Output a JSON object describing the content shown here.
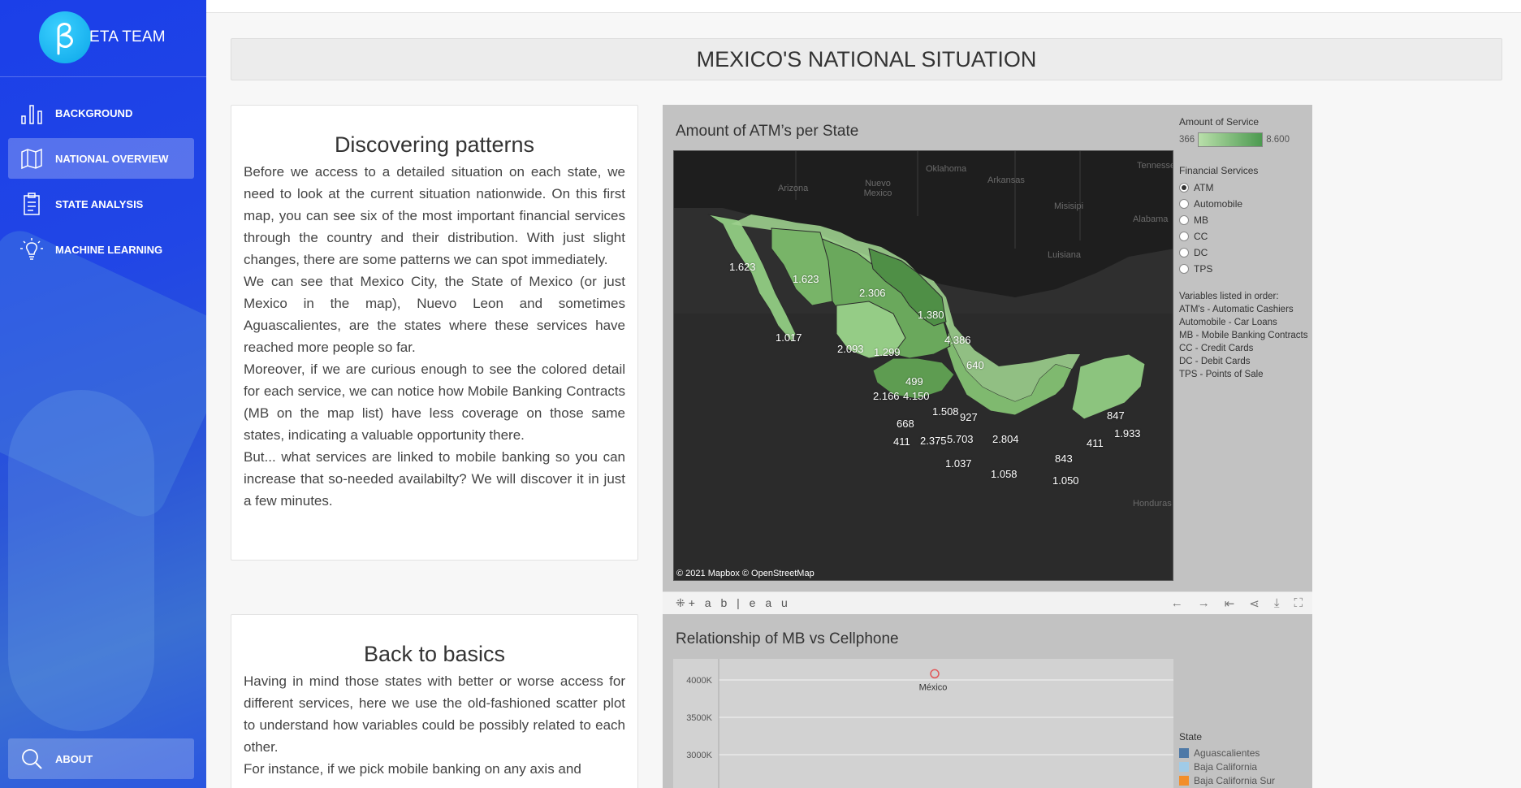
{
  "brand": {
    "name": "ETA TEAM"
  },
  "nav": {
    "items": [
      {
        "label": "BACKGROUND",
        "icon": "bar-chart-icon"
      },
      {
        "label": "NATIONAL OVERVIEW",
        "icon": "map-icon"
      },
      {
        "label": "STATE ANALYSIS",
        "icon": "clipboard-icon"
      },
      {
        "label": "MACHINE LEARNING",
        "icon": "lightbulb-icon"
      }
    ],
    "about": "ABOUT"
  },
  "page": {
    "title": "MEXICO'S NATIONAL SITUATION"
  },
  "card1": {
    "heading": "Discovering patterns",
    "paragraphs": [
      "Before we access to a detailed situation on each state, we need to look at the current situation nationwide. On this first map, you can see six of the most important financial services through the country and their distribution. With just slight changes, there are some patterns we can spot immediately.",
      "We can see that Mexico City, the State of Mexico (or just Mexico in the map), Nuevo Leon and sometimes Aguascalientes, are the states where these services have reached more people so far.",
      "Moreover, if we are curious enough to see the colored detail for each service, we can notice how Mobile Banking Contracts (MB on the map list) have less coverage on those same states, indicating a valuable opportunity there.",
      "But... what services are linked to mobile banking so you can increase that so-needed availabilty? We will discover it in just a few minutes."
    ]
  },
  "card2": {
    "heading": "Back to basics",
    "paragraphs": [
      "Having in mind those states with better or worse access for different services, here we use the old-fashioned scatter plot to understand how variables could be possibly related to each other.",
      "For instance, if we pick mobile banking on any axis and"
    ]
  },
  "viz1": {
    "title": "Amount of ATM’s per State",
    "credit": "© 2021 Mapbox  © OpenStreetMap",
    "places": [
      "Oklahoma",
      "Arkansas",
      "Tennessee",
      "Arizona",
      "Nuevo Mexico",
      "Misisipi",
      "Alabama",
      "Luisiana",
      "Honduras"
    ],
    "state_labels": [
      "1.623",
      "1.623",
      "2.306",
      "1.380",
      "4.386",
      "1.017",
      "2.093",
      "1.299",
      "640",
      "499",
      "2.166",
      "4.150",
      "1.508",
      "927",
      "668",
      "411",
      "2.375",
      "5.703",
      "2.804",
      "1.037",
      "1.058",
      "843",
      "1.050",
      "847",
      "1.933",
      "411"
    ],
    "legend": {
      "color_title": "Amount of Service",
      "min": "366",
      "max": "8.600",
      "services_title": "Financial Services",
      "services": [
        "ATM",
        "Automobile",
        "MB",
        "CC",
        "DC",
        "TPS"
      ],
      "selected": "ATM",
      "vars_title": "Variables listed in order:",
      "vars": [
        "ATM's - Automatic Cashiers",
        "Automobile - Car Loans",
        "MB - Mobile Banking Contracts",
        "CC - Credit Cards",
        "DC - Debit Cards",
        "TPS - Points of Sale"
      ]
    }
  },
  "toolbar": {
    "logo": "+ a b | e a u"
  },
  "viz2": {
    "title": "Relationship of MB vs Cellphone",
    "legend_title": "State",
    "legend": [
      {
        "name": "Aguascalientes",
        "color": "#4e79a7"
      },
      {
        "name": "Baja California",
        "color": "#a0cbe8"
      },
      {
        "name": "Baja California Sur",
        "color": "#f28e2b"
      }
    ]
  },
  "chart_data": {
    "type": "scatter",
    "title": "Relationship of MB vs Cellphone",
    "y_ticks": [
      "4000K",
      "3500K",
      "3000K"
    ],
    "points": [
      {
        "label": "México",
        "y": 4050000,
        "color": "#e15759"
      }
    ],
    "legend_title": "State",
    "series": [
      {
        "name": "Aguascalientes"
      },
      {
        "name": "Baja California"
      },
      {
        "name": "Baja California Sur"
      }
    ]
  }
}
